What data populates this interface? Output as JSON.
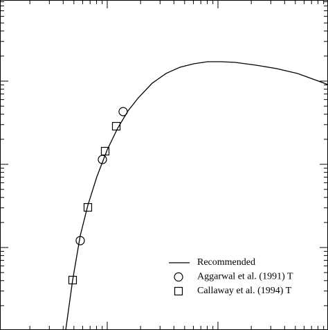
{
  "chart_data": {
    "type": "line",
    "xscale": "log",
    "yscale": "log",
    "xlim": [
      1075,
      986000
    ],
    "ylim": [
      0.00102,
      9.44
    ],
    "xticks": [
      10000,
      100000
    ],
    "yticks": [
      0.01,
      0.1,
      1
    ],
    "legend": "lower right",
    "series": [
      {
        "name": "Recommended",
        "color": "#000000",
        "style": "line",
        "x": [
          4217,
          4870,
          5702,
          6683,
          8054,
          10000,
          12410,
          15400,
          19110,
          25480,
          33980,
          45310,
          60420,
          80540,
          107400,
          143300,
          220600,
          339800,
          523300,
          986000
        ],
        "values": [
          0.00102,
          0.00406,
          0.01386,
          0.0322,
          0.0708,
          0.1496,
          0.271,
          0.438,
          0.631,
          0.944,
          1.236,
          1.468,
          1.616,
          1.711,
          1.711,
          1.679,
          1.555,
          1.413,
          1.236,
          0.909
        ]
      },
      {
        "name": "Aggarwal et al. (1991) T",
        "color": "#000000",
        "marker": "circle",
        "x": [
          5702,
          9040,
          13920
        ],
        "values": [
          0.0121,
          0.1143,
          0.43
        ]
      },
      {
        "name": "Callaway et al. (1994) T",
        "color": "#000000",
        "marker": "square",
        "x": [
          4870,
          6683,
          9578,
          12060
        ],
        "values": [
          0.00406,
          0.0304,
          0.1439,
          0.287
        ]
      }
    ]
  }
}
